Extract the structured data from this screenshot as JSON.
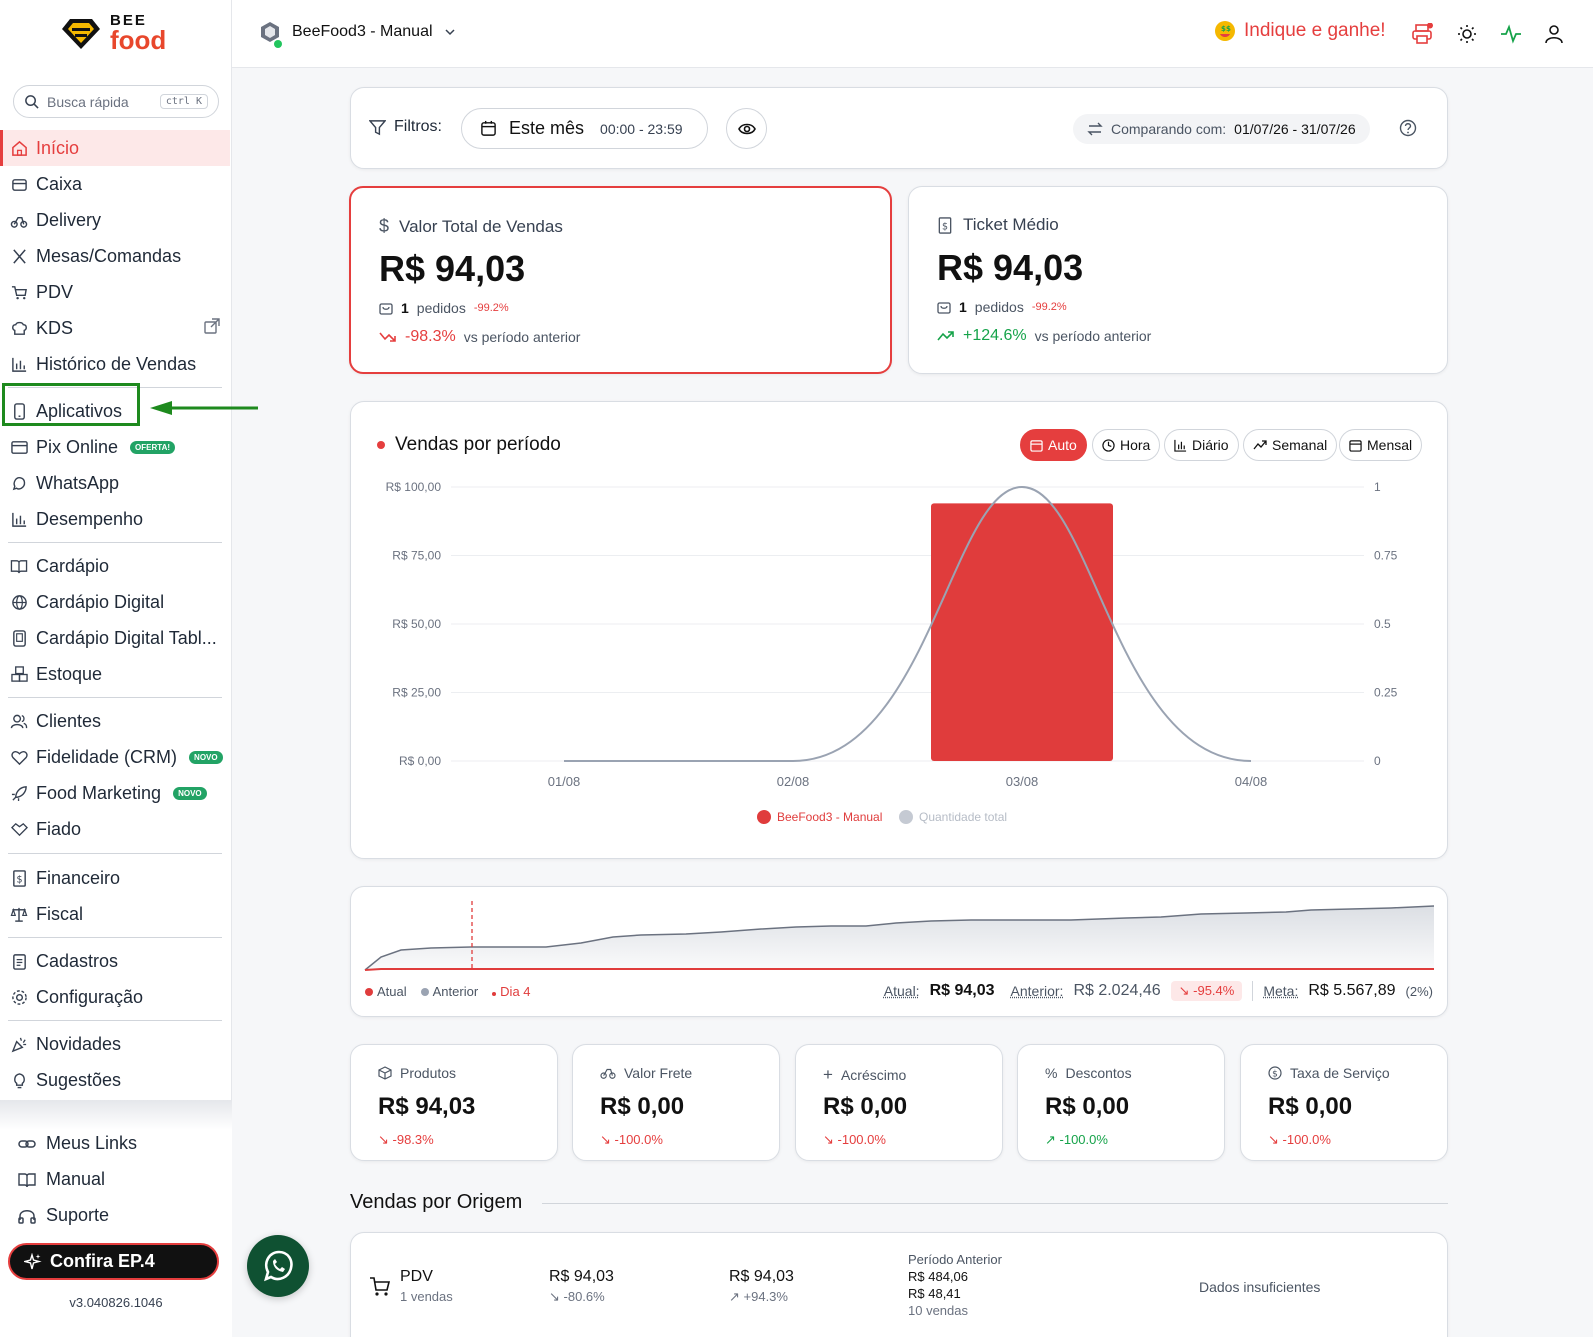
{
  "brand": {
    "top": "BEE",
    "bottom": "food"
  },
  "search": {
    "placeholder": "Busca rápida",
    "shortcut": "ctrl K"
  },
  "nav": {
    "inicio": "Início",
    "caixa": "Caixa",
    "delivery": "Delivery",
    "mesas": "Mesas/Comandas",
    "pdv": "PDV",
    "kds": "KDS",
    "historico": "Histórico de Vendas",
    "aplicativos": "Aplicativos",
    "pix": "Pix Online",
    "pix_badge": "OFERTA!",
    "whatsapp": "WhatsApp",
    "desempenho": "Desempenho",
    "cardapio": "Cardápio",
    "cardapio_digital": "Cardápio Digital",
    "cardapio_tablet": "Cardápio Digital Tabl...",
    "estoque": "Estoque",
    "clientes": "Clientes",
    "fidelidade": "Fidelidade (CRM)",
    "novo": "NOVO",
    "food_marketing": "Food Marketing",
    "fiado": "Fiado",
    "financeiro": "Financeiro",
    "fiscal": "Fiscal",
    "cadastros": "Cadastros",
    "configuracao": "Configuração",
    "novidades": "Novidades",
    "sugestoes": "Sugestões"
  },
  "footer": {
    "links": "Meus Links",
    "manual": "Manual",
    "suporte": "Suporte",
    "ep4": "Confira EP.4",
    "version": "v3.040826.1046"
  },
  "topbar": {
    "store": "BeeFood3 - Manual",
    "indique": "Indique e ganhe!"
  },
  "filters": {
    "label": "Filtros:",
    "period": "Este mês",
    "time": "00:00 - 23:59",
    "compare_label": "Comparando com:",
    "compare_range": "01/07/26 - 31/07/26"
  },
  "kpis": [
    {
      "title": "Valor Total de Vendas",
      "value": "R$ 94,03",
      "orders": "1",
      "orders_label": "pedidos",
      "orders_pct": "-99.2%",
      "trend": "-98.3%",
      "vs": "vs período anterior"
    },
    {
      "title": "Ticket Médio",
      "value": "R$ 94,03",
      "orders": "1",
      "orders_label": "pedidos",
      "orders_pct": "-99.2%",
      "trend": "+124.6%",
      "vs": "vs período anterior"
    }
  ],
  "chart": {
    "title": "Vendas por período",
    "buttons": [
      "Auto",
      "Hora",
      "Diário",
      "Semanal",
      "Mensal"
    ]
  },
  "chart_data": {
    "type": "bar",
    "categories": [
      "01/08",
      "02/08",
      "03/08",
      "04/08"
    ],
    "series": [
      {
        "name": "BeeFood3 - Manual",
        "type": "bar",
        "axis": "left",
        "color": "#e03c3c",
        "values": [
          0,
          0,
          94.03,
          0
        ]
      },
      {
        "name": "Quantidade total",
        "type": "line",
        "axis": "right",
        "color": "#9aa3b2",
        "values": [
          0,
          0,
          1,
          0
        ]
      }
    ],
    "y_left_ticks": [
      "R$ 100,00",
      "R$ 75,00",
      "R$ 50,00",
      "R$ 25,00",
      "R$ 0,00"
    ],
    "y_right_ticks": [
      "1",
      "0.75",
      "0.5",
      "0.25",
      "0"
    ],
    "ylim_left": [
      0,
      100
    ],
    "ylim_right": [
      0,
      1
    ],
    "legend": "bottom",
    "grid": true
  },
  "trend": {
    "legend": [
      "Atual",
      "Anterior",
      "Dia 4"
    ],
    "atual_label": "Atual:",
    "atual_value": "R$ 94,03",
    "anterior_label": "Anterior:",
    "anterior_value": "R$ 2.024,46",
    "diff": "-95.4%",
    "meta_label": "Meta:",
    "meta_value": "R$ 5.567,89",
    "meta_pct": "(2%)"
  },
  "minis": [
    {
      "title": "Produtos",
      "value": "R$ 94,03",
      "trend": "-98.3%"
    },
    {
      "title": "Valor Frete",
      "value": "R$ 0,00",
      "trend": "-100.0%"
    },
    {
      "title": "Acréscimo",
      "value": "R$ 0,00",
      "trend": "-100.0%"
    },
    {
      "title": "Descontos",
      "value": "R$ 0,00",
      "trend": "-100.0%"
    },
    {
      "title": "Taxa de Serviço",
      "value": "R$ 0,00",
      "trend": "-100.0%"
    }
  ],
  "origin": {
    "title": "Vendas por Origem",
    "row": {
      "name": "PDV",
      "sales": "1 vendas",
      "value": "R$ 94,03",
      "value_trend": "-80.6%",
      "ticket": "R$ 94,03",
      "ticket_trend": "+94.3%",
      "prev_label": "Período Anterior",
      "prev_value": "R$ 484,06",
      "prev_ticket": "R$ 48,41",
      "prev_sales": "10 vendas",
      "insufficient": "Dados insuficientes"
    }
  }
}
